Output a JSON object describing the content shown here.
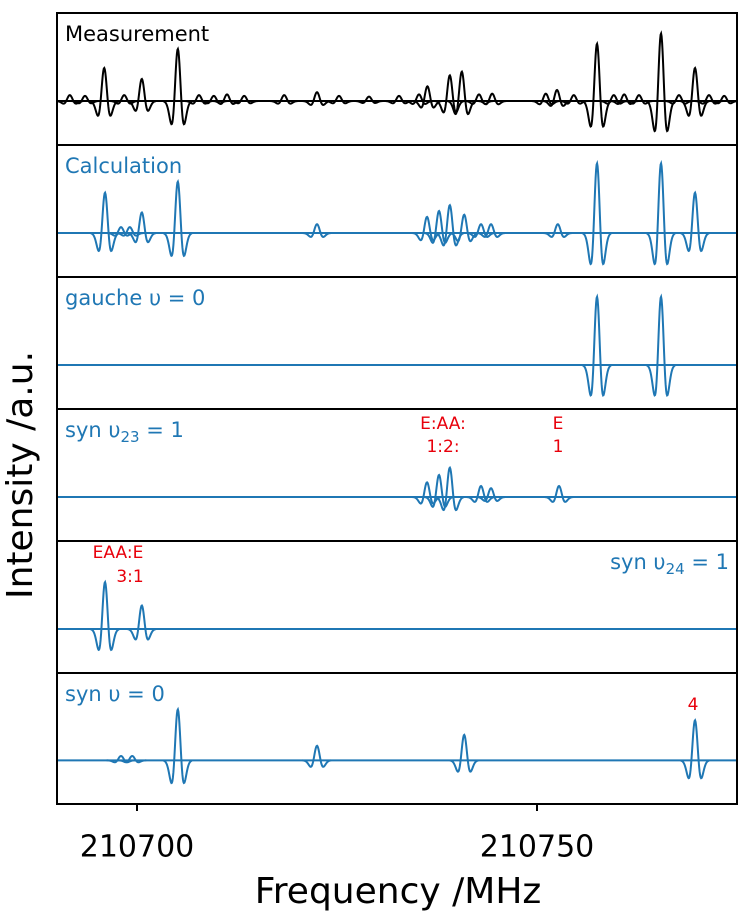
{
  "shared": {
    "xlim": [
      210690,
      210775
    ],
    "xticks": [
      210700,
      210750
    ],
    "xlabel": "Frequency /MHz",
    "ylabel": "Intensity /a.u."
  },
  "chart_data": [
    {
      "type": "spectrum",
      "title": "Measurement",
      "label_corner": "upper left",
      "color": "#000000",
      "ylim": [
        -0.6,
        1.2
      ],
      "x": [
        210691.6,
        210693.5,
        210695.9,
        210698.4,
        210700.6,
        210705.1,
        210707.75,
        210709.6,
        210711.25,
        210713.4,
        210718.4,
        210722.5,
        210725.25,
        210729,
        210732.75,
        210735.25,
        210736.3,
        210739.1,
        210740.6,
        210742.75,
        210744.4,
        210751.1,
        210752.5,
        210754.6,
        210757.5,
        210759.6,
        210760.9,
        210762.75,
        210765.5,
        210767.75,
        210769.75,
        210771.5,
        210773.4
      ],
      "values": [
        0.08,
        0.07,
        0.45,
        0.08,
        0.3,
        0.71,
        0.08,
        0.07,
        0.09,
        0.07,
        0.08,
        0.12,
        0.07,
        0.06,
        0.07,
        0.09,
        0.2,
        0.35,
        0.4,
        0.09,
        0.1,
        0.1,
        0.15,
        0.08,
        0.78,
        0.08,
        0.09,
        0.08,
        0.92,
        0.08,
        0.45,
        0.08,
        0.07
      ]
    },
    {
      "type": "spectrum",
      "title": "Calculation",
      "label_corner": "upper left",
      "color": "#1f77b4",
      "ylim": [
        -0.6,
        1.2
      ],
      "x": [
        210696,
        210698,
        210699.1,
        210700.6,
        210705.1,
        210722.5,
        210736.25,
        210737.75,
        210739.1,
        210740.9,
        210743,
        210744.25,
        210752.6,
        210757.5,
        210765.5,
        210769.75
      ],
      "values": [
        0.55,
        0.08,
        0.08,
        0.28,
        0.7,
        0.12,
        0.22,
        0.3,
        0.38,
        0.25,
        0.12,
        0.12,
        0.12,
        0.95,
        0.95,
        0.55
      ]
    },
    {
      "type": "spectrum",
      "title": "gauche υ = 0",
      "label_corner": "upper left",
      "color": "#1f77b4",
      "ylim": [
        -0.6,
        1.2
      ],
      "x": [
        210757.5,
        210765.5
      ],
      "values": [
        0.93,
        0.93
      ]
    },
    {
      "type": "spectrum",
      "title": "syn υ",
      "title_sub": "23",
      "title_end": " = 1",
      "label_corner": "upper left",
      "color": "#1f77b4",
      "ylim": [
        -0.6,
        1.2
      ],
      "x": [
        210736.25,
        210737.75,
        210739.1,
        210743,
        210744.25,
        210752.75
      ],
      "values": [
        0.2,
        0.3,
        0.4,
        0.15,
        0.12,
        0.15
      ],
      "annotations": [
        "E:AA:",
        "1:2:",
        "E",
        "1"
      ]
    },
    {
      "type": "spectrum",
      "title": "syn υ",
      "title_sub": "24",
      "title_end": " = 1",
      "label_corner": "upper right",
      "color": "#1f77b4",
      "ylim": [
        -0.6,
        1.2
      ],
      "x": [
        210696,
        210700.6
      ],
      "values": [
        0.64,
        0.32
      ],
      "annotations": [
        "EAA:E",
        "3:1"
      ]
    },
    {
      "type": "spectrum",
      "title": "syn υ = 0",
      "label_corner": "upper left",
      "color": "#1f77b4",
      "ylim": [
        -0.6,
        1.2
      ],
      "x": [
        210698,
        210699.4,
        210705.1,
        210722.5,
        210740.9,
        210769.75
      ],
      "values": [
        0.06,
        0.06,
        0.7,
        0.2,
        0.35,
        0.55
      ],
      "annotations": [
        "4"
      ]
    }
  ]
}
